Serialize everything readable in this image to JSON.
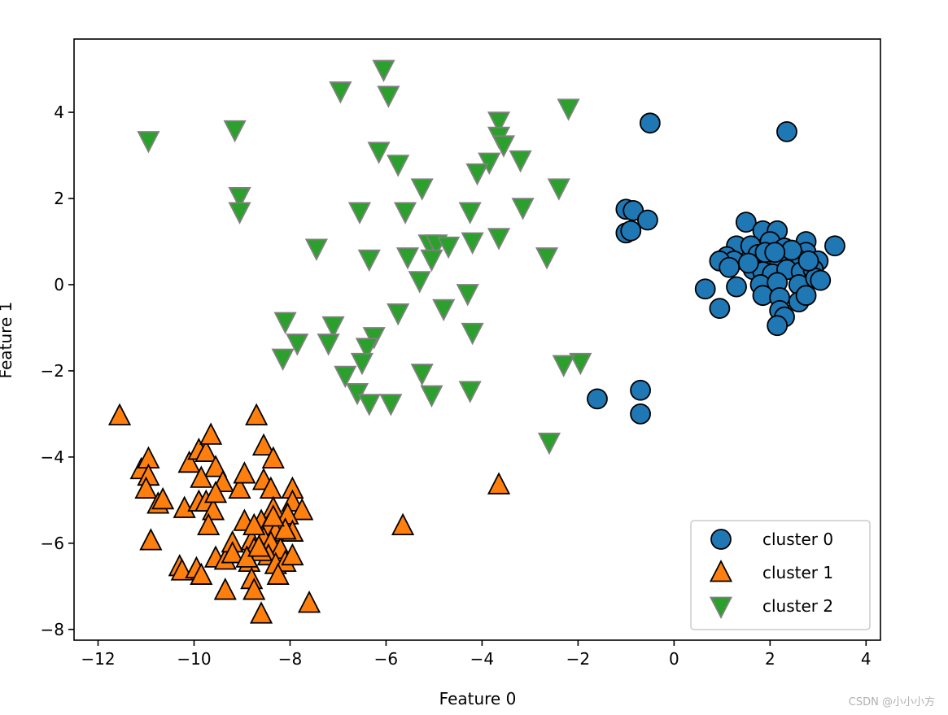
{
  "chart_data": {
    "type": "scatter",
    "xlabel": "Feature 0",
    "ylabel": "Feature 1",
    "xlim": [
      -12.5,
      4.3
    ],
    "ylim": [
      -8.25,
      5.7
    ],
    "xticks": [
      -12,
      -10,
      -8,
      -6,
      -4,
      -2,
      0,
      2,
      4
    ],
    "yticks": [
      -8,
      -6,
      -4,
      -2,
      0,
      2,
      4
    ],
    "legend_position": "lower-right",
    "series": [
      {
        "name": "cluster 0",
        "marker": "circle",
        "color": "#1f77b4",
        "edgecolor": "#000000",
        "points": [
          [
            -0.5,
            3.75
          ],
          [
            2.35,
            3.55
          ],
          [
            -1.0,
            1.75
          ],
          [
            -0.85,
            1.72
          ],
          [
            -0.55,
            1.5
          ],
          [
            -1.0,
            1.2
          ],
          [
            -0.9,
            1.25
          ],
          [
            -1.6,
            -2.65
          ],
          [
            -0.7,
            -2.45
          ],
          [
            -0.7,
            -3.0
          ],
          [
            1.5,
            1.45
          ],
          [
            1.85,
            1.25
          ],
          [
            2.15,
            1.25
          ],
          [
            2.75,
            1.0
          ],
          [
            1.3,
            0.9
          ],
          [
            1.6,
            0.9
          ],
          [
            2.0,
            1.0
          ],
          [
            2.3,
            0.85
          ],
          [
            2.75,
            0.75
          ],
          [
            3.35,
            0.9
          ],
          [
            1.1,
            0.65
          ],
          [
            1.25,
            0.55
          ],
          [
            1.75,
            0.7
          ],
          [
            1.95,
            0.6
          ],
          [
            2.2,
            0.55
          ],
          [
            2.55,
            0.6
          ],
          [
            3.0,
            0.55
          ],
          [
            0.95,
            0.55
          ],
          [
            1.15,
            0.4
          ],
          [
            1.65,
            0.35
          ],
          [
            1.85,
            0.3
          ],
          [
            2.05,
            0.25
          ],
          [
            2.35,
            0.35
          ],
          [
            2.65,
            0.3
          ],
          [
            2.9,
            0.35
          ],
          [
            1.9,
            0.75
          ],
          [
            1.3,
            -0.05
          ],
          [
            1.8,
            0.0
          ],
          [
            2.15,
            0.05
          ],
          [
            2.6,
            0.0
          ],
          [
            2.95,
            0.15
          ],
          [
            3.05,
            0.1
          ],
          [
            0.65,
            -0.1
          ],
          [
            1.85,
            -0.25
          ],
          [
            2.2,
            -0.3
          ],
          [
            2.6,
            -0.4
          ],
          [
            2.75,
            -0.25
          ],
          [
            0.95,
            -0.55
          ],
          [
            2.2,
            -0.6
          ],
          [
            2.3,
            -0.75
          ],
          [
            2.15,
            -0.95
          ],
          [
            2.45,
            0.8
          ],
          [
            2.8,
            0.55
          ],
          [
            1.55,
            0.5
          ],
          [
            2.1,
            0.75
          ]
        ]
      },
      {
        "name": "cluster 1",
        "marker": "triangle-up",
        "color": "#ff7f0e",
        "edgecolor": "#000000",
        "points": [
          [
            -11.55,
            -3.05
          ],
          [
            -11.1,
            -4.3
          ],
          [
            -10.95,
            -4.05
          ],
          [
            -10.95,
            -4.45
          ],
          [
            -11.0,
            -4.75
          ],
          [
            -10.75,
            -5.1
          ],
          [
            -10.65,
            -5.0
          ],
          [
            -10.9,
            -5.95
          ],
          [
            -10.3,
            -6.55
          ],
          [
            -10.25,
            -6.65
          ],
          [
            -10.2,
            -5.2
          ],
          [
            -10.1,
            -4.15
          ],
          [
            -9.9,
            -3.85
          ],
          [
            -9.75,
            -3.9
          ],
          [
            -9.65,
            -3.5
          ],
          [
            -9.55,
            -4.25
          ],
          [
            -9.4,
            -4.6
          ],
          [
            -9.85,
            -4.5
          ],
          [
            -9.9,
            -5.05
          ],
          [
            -9.75,
            -5.05
          ],
          [
            -9.6,
            -5.25
          ],
          [
            -9.55,
            -4.85
          ],
          [
            -9.7,
            -5.6
          ],
          [
            -9.95,
            -6.6
          ],
          [
            -9.85,
            -6.75
          ],
          [
            -9.55,
            -6.35
          ],
          [
            -9.35,
            -6.4
          ],
          [
            -9.2,
            -6.0
          ],
          [
            -9.2,
            -6.25
          ],
          [
            -9.35,
            -7.1
          ],
          [
            -9.05,
            -4.75
          ],
          [
            -8.95,
            -4.4
          ],
          [
            -8.95,
            -5.5
          ],
          [
            -8.8,
            -5.95
          ],
          [
            -8.75,
            -6.15
          ],
          [
            -8.85,
            -6.45
          ],
          [
            -8.8,
            -6.85
          ],
          [
            -8.75,
            -7.1
          ],
          [
            -8.6,
            -7.65
          ],
          [
            -8.7,
            -3.05
          ],
          [
            -8.55,
            -3.75
          ],
          [
            -8.35,
            -4.05
          ],
          [
            -8.55,
            -4.55
          ],
          [
            -8.4,
            -4.75
          ],
          [
            -8.35,
            -5.2
          ],
          [
            -8.6,
            -5.5
          ],
          [
            -8.45,
            -5.6
          ],
          [
            -8.3,
            -5.75
          ],
          [
            -8.55,
            -5.9
          ],
          [
            -8.4,
            -6.0
          ],
          [
            -8.2,
            -6.15
          ],
          [
            -8.45,
            -6.3
          ],
          [
            -8.6,
            -6.2
          ],
          [
            -8.3,
            -6.5
          ],
          [
            -8.1,
            -6.45
          ],
          [
            -8.25,
            -6.75
          ],
          [
            -7.95,
            -4.75
          ],
          [
            -7.95,
            -5.05
          ],
          [
            -7.75,
            -5.25
          ],
          [
            -8.05,
            -5.35
          ],
          [
            -7.95,
            -5.75
          ],
          [
            -8.1,
            -5.7
          ],
          [
            -7.95,
            -6.3
          ],
          [
            -7.6,
            -7.4
          ],
          [
            -5.65,
            -5.6
          ],
          [
            -3.65,
            -4.65
          ],
          [
            -8.75,
            -5.6
          ],
          [
            -8.9,
            -6.35
          ],
          [
            -8.65,
            -6.1
          ],
          [
            -8.35,
            -5.4
          ]
        ]
      },
      {
        "name": "cluster 2",
        "marker": "triangle-down",
        "color": "#2ca02c",
        "edgecolor": "#808080",
        "points": [
          [
            -6.05,
            5.0
          ],
          [
            -6.95,
            4.5
          ],
          [
            -5.95,
            4.4
          ],
          [
            -2.2,
            4.1
          ],
          [
            -3.65,
            3.8
          ],
          [
            -3.65,
            3.45
          ],
          [
            -3.55,
            3.25
          ],
          [
            -10.95,
            3.35
          ],
          [
            -9.15,
            3.6
          ],
          [
            -9.05,
            2.05
          ],
          [
            -9.05,
            1.7
          ],
          [
            -6.15,
            3.1
          ],
          [
            -5.75,
            2.8
          ],
          [
            -3.85,
            2.85
          ],
          [
            -3.2,
            2.9
          ],
          [
            -5.25,
            2.25
          ],
          [
            -4.1,
            2.6
          ],
          [
            -2.4,
            2.25
          ],
          [
            -6.55,
            1.7
          ],
          [
            -5.6,
            1.7
          ],
          [
            -4.25,
            1.7
          ],
          [
            -3.15,
            1.8
          ],
          [
            -7.45,
            0.85
          ],
          [
            -4.2,
            1.0
          ],
          [
            -3.65,
            1.1
          ],
          [
            -5.1,
            0.95
          ],
          [
            -4.95,
            0.95
          ],
          [
            -4.7,
            0.9
          ],
          [
            -6.35,
            0.6
          ],
          [
            -5.55,
            0.65
          ],
          [
            -5.05,
            0.6
          ],
          [
            -2.65,
            0.65
          ],
          [
            -5.3,
            0.1
          ],
          [
            -5.75,
            -0.65
          ],
          [
            -4.8,
            -0.55
          ],
          [
            -4.3,
            -0.2
          ],
          [
            -8.1,
            -0.85
          ],
          [
            -7.1,
            -0.95
          ],
          [
            -7.85,
            -1.35
          ],
          [
            -7.2,
            -1.35
          ],
          [
            -6.25,
            -1.2
          ],
          [
            -6.4,
            -1.45
          ],
          [
            -6.5,
            -1.8
          ],
          [
            -8.15,
            -1.7
          ],
          [
            -6.85,
            -2.1
          ],
          [
            -5.25,
            -2.05
          ],
          [
            -1.95,
            -1.8
          ],
          [
            -2.3,
            -1.85
          ],
          [
            -4.2,
            -1.1
          ],
          [
            -6.6,
            -2.5
          ],
          [
            -6.35,
            -2.75
          ],
          [
            -5.9,
            -2.75
          ],
          [
            -5.05,
            -2.55
          ],
          [
            -4.25,
            -2.45
          ],
          [
            -2.6,
            -3.65
          ]
        ]
      }
    ]
  },
  "watermark": "CSDN @小小小方"
}
